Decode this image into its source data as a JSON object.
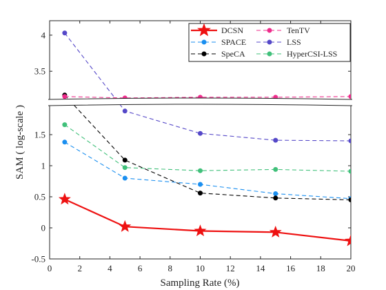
{
  "chart_data": {
    "type": "line",
    "xlabel": "Sampling Rate (%)",
    "ylabel": "SAM ( log-scale )",
    "x_ticks": [
      "0",
      "2",
      "4",
      "6",
      "8",
      "10",
      "12",
      "14",
      "16",
      "18",
      "20"
    ],
    "y_ticks_lower": [
      "-0.5",
      "0",
      "0.5",
      "1",
      "1.5"
    ],
    "y_ticks_upper": [
      "3.5",
      "4"
    ],
    "xlim": [
      0,
      20
    ],
    "ylim_lower": [
      -0.5,
      2.0
    ],
    "ylim_upper": [
      3.1,
      4.2
    ],
    "broken_y_axis": true,
    "grid": false,
    "legend_position": "top-right",
    "x": [
      1,
      5,
      10,
      15,
      20
    ],
    "series": [
      {
        "name": "DCSN",
        "color": "#ee1111",
        "marker": "star",
        "dash": "solid",
        "values": [
          0.46,
          0.02,
          -0.05,
          -0.07,
          -0.21
        ]
      },
      {
        "name": "SPACE",
        "color": "#1a8ff0",
        "marker": "circle",
        "dash": "dashed",
        "values": [
          1.38,
          0.8,
          0.7,
          0.55,
          0.47
        ]
      },
      {
        "name": "SpeCA",
        "color": "#000000",
        "marker": "circle",
        "dash": "dashed",
        "values": [
          3.17,
          1.09,
          0.56,
          0.48,
          0.45
        ]
      },
      {
        "name": "TenTV",
        "color": "#ee2b8b",
        "marker": "circle",
        "dash": "dashed",
        "values": [
          3.15,
          3.13,
          3.14,
          3.14,
          3.15
        ]
      },
      {
        "name": "LSS",
        "color": "#5548c8",
        "marker": "circle",
        "dash": "dashed",
        "values": [
          4.03,
          1.88,
          1.52,
          1.41,
          1.4
        ]
      },
      {
        "name": "HyperCSI-LSS",
        "color": "#40c07a",
        "marker": "circle",
        "dash": "dashed",
        "values": [
          1.66,
          0.97,
          0.92,
          0.94,
          0.91
        ]
      }
    ]
  }
}
